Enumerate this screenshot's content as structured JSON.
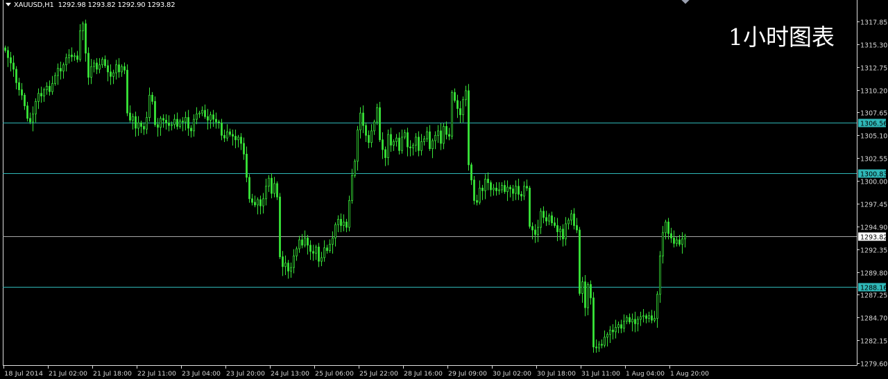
{
  "header": {
    "symbol": "XAUUSD,H1",
    "ohlc": "1292.98 1293.82 1292.90 1293.82"
  },
  "watermark": "1小时图表",
  "colors": {
    "background": "#000000",
    "candle": "#39e639",
    "hline": "#2fb8b8",
    "bid_line": "#a8a8a8",
    "axis": "#e0e0e0",
    "axis_text": "#d8d8d8"
  },
  "chart_data": {
    "type": "candlestick",
    "timeframe": "H1",
    "ylim": [
      1279.6,
      1317.85
    ],
    "y_ticks": [
      "1317.85",
      "1315.30",
      "1312.75",
      "1310.20",
      "1307.65",
      "1305.10",
      "1302.55",
      "1300.00",
      "1297.45",
      "1294.90",
      "1292.35",
      "1289.80",
      "1287.25",
      "1284.70",
      "1282.15",
      "1279.60"
    ],
    "x_ticks": [
      "18 Jul 2014",
      "21 Jul 02:00",
      "21 Jul 18:00",
      "22 Jul 11:00",
      "23 Jul 04:00",
      "23 Jul 20:00",
      "24 Jul 13:00",
      "25 Jul 06:00",
      "25 Jul 22:00",
      "28 Jul 16:00",
      "29 Jul 09:00",
      "30 Jul 02:00",
      "30 Jul 18:00",
      "31 Jul 11:00",
      "1 Aug 04:00",
      "1 Aug 20:00"
    ],
    "grid": false,
    "horizontal_lines": [
      {
        "price": "1306.56",
        "style": "level"
      },
      {
        "price": "1300.83",
        "style": "level"
      },
      {
        "price": "1288.16",
        "style": "level"
      },
      {
        "price": "1293.82",
        "style": "bid"
      }
    ],
    "close": [
      1314.6,
      1313.8,
      1313.2,
      1312.5,
      1311.0,
      1310.2,
      1309.6,
      1308.4,
      1307.0,
      1306.6,
      1307.5,
      1308.9,
      1309.8,
      1309.5,
      1310.2,
      1310.6,
      1310.0,
      1310.9,
      1311.8,
      1312.6,
      1312.3,
      1313.0,
      1313.8,
      1314.1,
      1313.9,
      1314.0,
      1313.6,
      1316.8,
      1317.6,
      1314.3,
      1311.6,
      1312.8,
      1313.2,
      1312.5,
      1313.0,
      1313.6,
      1312.9,
      1312.2,
      1311.7,
      1312.1,
      1313.0,
      1312.2,
      1312.8,
      1312.4,
      1307.6,
      1306.8,
      1307.2,
      1305.9,
      1306.5,
      1306.1,
      1305.8,
      1307.1,
      1309.6,
      1308.9,
      1306.3,
      1306.0,
      1307.0,
      1306.8,
      1306.5,
      1306.2,
      1306.3,
      1306.9,
      1306.1,
      1306.7,
      1306.6,
      1307.1,
      1305.9,
      1305.6,
      1306.9,
      1307.5,
      1307.6,
      1307.9,
      1307.2,
      1306.8,
      1307.4,
      1306.9,
      1306.6,
      1306.5,
      1305.1,
      1304.8,
      1305.5,
      1305.2,
      1305.0,
      1304.6,
      1304.9,
      1304.2,
      1303.0,
      1300.4,
      1298.0,
      1297.6,
      1297.3,
      1297.9,
      1297.2,
      1298.0,
      1299.4,
      1300.3,
      1298.6,
      1299.7,
      1298.2,
      1291.5,
      1290.4,
      1290.8,
      1289.9,
      1290.3,
      1291.6,
      1292.4,
      1293.4,
      1292.8,
      1293.6,
      1292.8,
      1292.1,
      1291.9,
      1292.6,
      1291.0,
      1291.4,
      1292.5,
      1292.2,
      1292.9,
      1293.6,
      1295.1,
      1295.7,
      1295.0,
      1295.4,
      1294.8,
      1297.8,
      1300.6,
      1302.2,
      1305.7,
      1307.6,
      1306.2,
      1305.1,
      1304.3,
      1305.6,
      1306.6,
      1308.2,
      1304.6,
      1303.5,
      1302.6,
      1305.2,
      1304.0,
      1304.4,
      1304.8,
      1303.4,
      1304.9,
      1305.4,
      1303.8,
      1303.7,
      1304.0,
      1304.9,
      1303.4,
      1304.4,
      1304.7,
      1305.5,
      1303.6,
      1304.5,
      1305.1,
      1305.6,
      1304.2,
      1306.1,
      1305.2,
      1305.0,
      1309.9,
      1309.0,
      1308.1,
      1307.4,
      1309.1,
      1310.1,
      1301.8,
      1300.1,
      1297.8,
      1297.6,
      1299.2,
      1298.9,
      1300.2,
      1299.8,
      1299.0,
      1299.2,
      1298.9,
      1299.0,
      1299.5,
      1298.8,
      1299.3,
      1299.1,
      1298.6,
      1299.4,
      1298.5,
      1298.3,
      1299.4,
      1299.2,
      1294.9,
      1294.5,
      1294.0,
      1294.8,
      1296.6,
      1295.9,
      1295.5,
      1296.1,
      1295.3,
      1295.0,
      1294.3,
      1294.6,
      1293.5,
      1295.2,
      1295.6,
      1296.3,
      1295.0,
      1294.5,
      1287.4,
      1288.7,
      1285.8,
      1288.4,
      1286.9,
      1281.4,
      1281.3,
      1281.7,
      1281.6,
      1282.5,
      1282.8,
      1283.3,
      1283.1,
      1283.6,
      1283.9,
      1283.5,
      1284.3,
      1284.7,
      1284.2,
      1284.5,
      1284.0,
      1284.5,
      1284.8,
      1284.9,
      1284.6,
      1284.9,
      1284.4,
      1284.6,
      1287.3,
      1291.6,
      1294.2,
      1295.4,
      1294.1,
      1293.6,
      1293.0,
      1293.4,
      1292.9,
      1293.5,
      1293.82
    ]
  }
}
